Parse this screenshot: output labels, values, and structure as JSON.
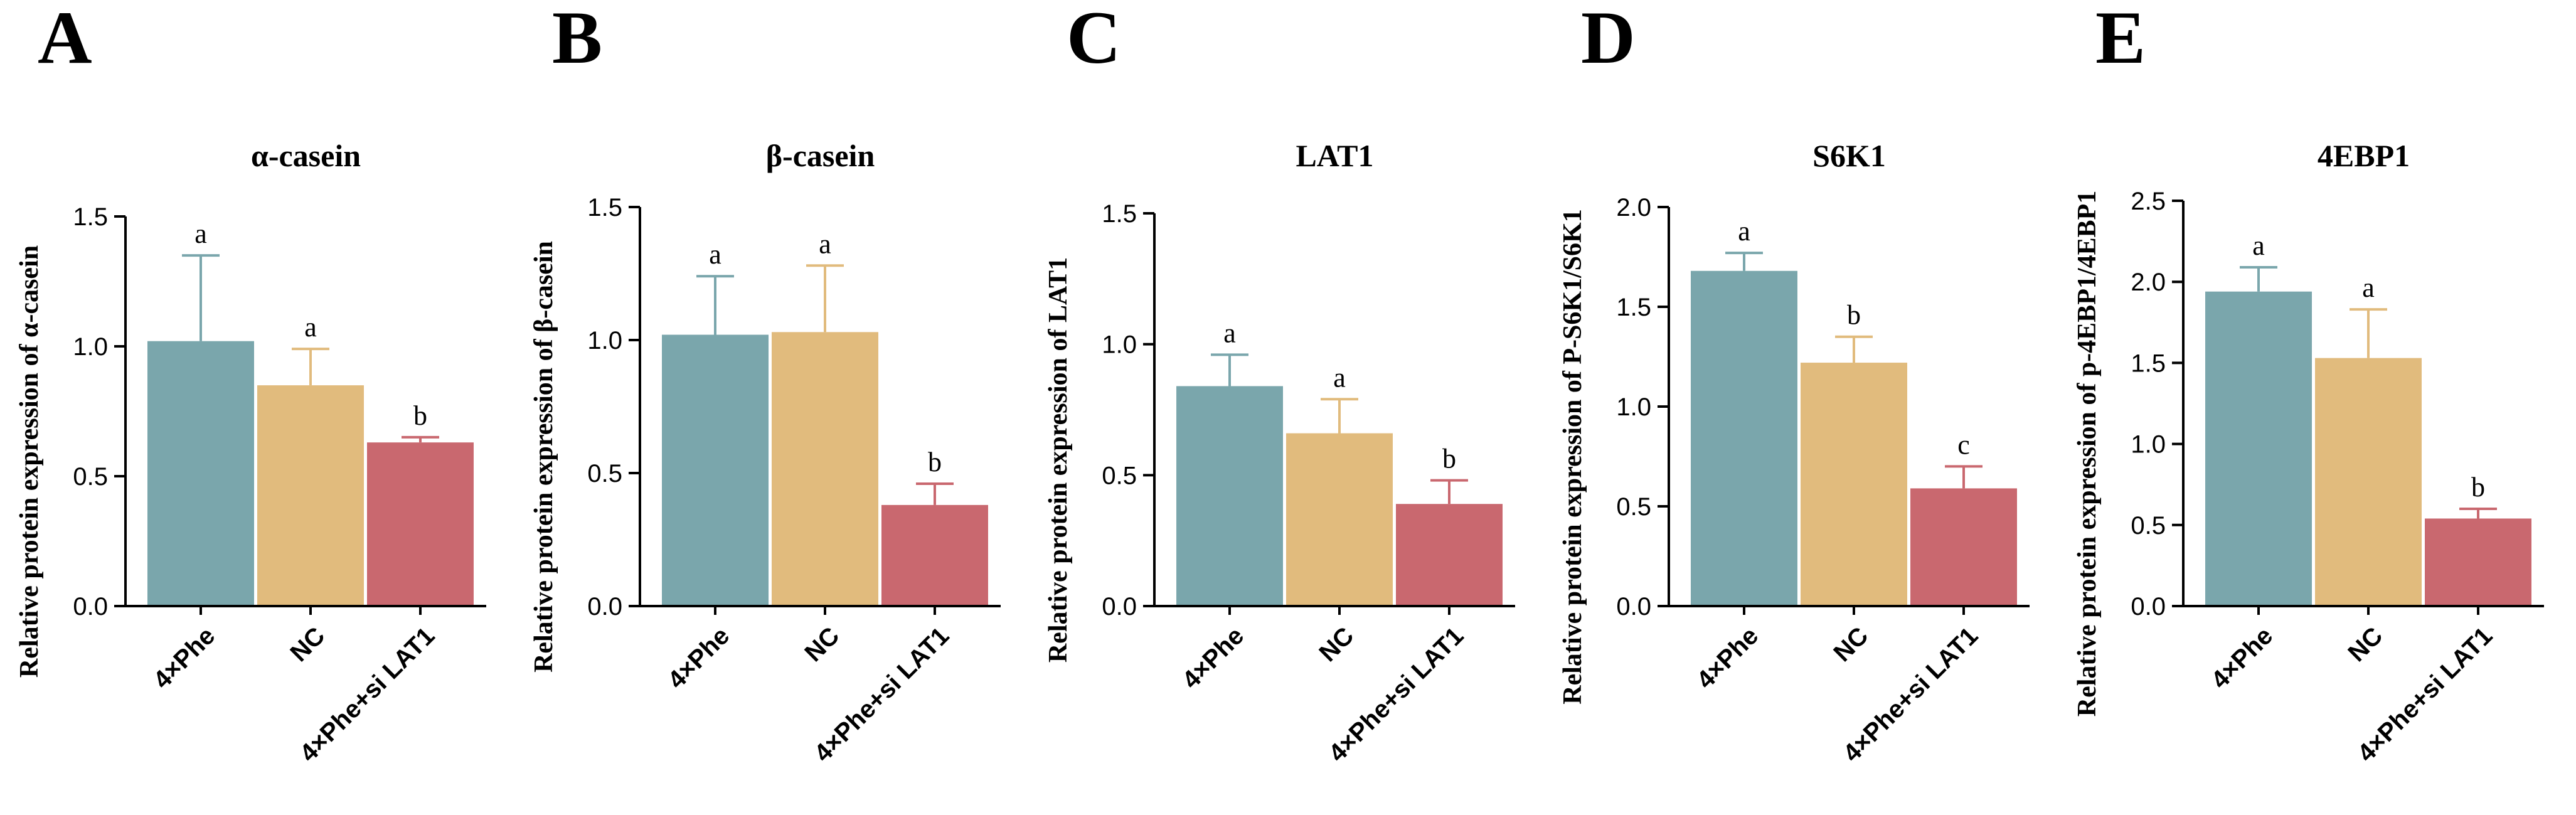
{
  "chart_data": [
    {
      "type": "bar",
      "panel": "A",
      "title": "α-casein",
      "ylabel": "Relative protein expression of α-casein",
      "xlabel": "",
      "categories": [
        "4×Phe",
        "NC",
        "4×Phe+si LAT1"
      ],
      "values": [
        1.02,
        0.85,
        0.63
      ],
      "errors": [
        0.33,
        0.14,
        0.02
      ],
      "significance": [
        "a",
        "a",
        "b"
      ],
      "ylim": [
        0,
        1.5
      ],
      "yticks": [
        0.0,
        0.5,
        1.0,
        1.5
      ],
      "ytick_labels": [
        "0.0",
        "0.5",
        "1.0",
        "1.5"
      ]
    },
    {
      "type": "bar",
      "panel": "B",
      "title": "β-casein",
      "ylabel": "Relative protein expression of β-casein",
      "xlabel": "",
      "categories": [
        "4×Phe",
        "NC",
        "4×Phe+si LAT1"
      ],
      "values": [
        1.02,
        1.03,
        0.38
      ],
      "errors": [
        0.22,
        0.25,
        0.08
      ],
      "significance": [
        "a",
        "a",
        "b"
      ],
      "ylim": [
        0,
        1.5
      ],
      "yticks": [
        0.0,
        0.5,
        1.0,
        1.5
      ],
      "ytick_labels": [
        "0.0",
        "0.5",
        "1.0",
        "1.5"
      ]
    },
    {
      "type": "bar",
      "panel": "C",
      "title": "LAT1",
      "ylabel": "Relative protein expression of LAT1",
      "xlabel": "",
      "categories": [
        "4×Phe",
        "NC",
        "4×Phe+si LAT1"
      ],
      "values": [
        0.84,
        0.66,
        0.39
      ],
      "errors": [
        0.12,
        0.13,
        0.09
      ],
      "significance": [
        "a",
        "a",
        "b"
      ],
      "ylim": [
        0,
        1.5
      ],
      "yticks": [
        0.0,
        0.5,
        1.0,
        1.5
      ],
      "ytick_labels": [
        "0.0",
        "0.5",
        "1.0",
        "1.5"
      ]
    },
    {
      "type": "bar",
      "panel": "D",
      "title": "S6K1",
      "ylabel": "Relative protein expression of P-S6K1/S6K1",
      "xlabel": "",
      "categories": [
        "4×Phe",
        "NC",
        "4×Phe+si LAT1"
      ],
      "values": [
        1.68,
        1.22,
        0.59
      ],
      "errors": [
        0.09,
        0.13,
        0.11
      ],
      "significance": [
        "a",
        "b",
        "c"
      ],
      "ylim": [
        0,
        2.0
      ],
      "yticks": [
        0.0,
        0.5,
        1.0,
        1.5,
        2.0
      ],
      "ytick_labels": [
        "0.0",
        "0.5",
        "1.0",
        "1.5",
        "2.0"
      ]
    },
    {
      "type": "bar",
      "panel": "E",
      "title": "4EBP1",
      "ylabel": "Relative protein expression of p-4EBP1/4EBP1",
      "xlabel": "",
      "categories": [
        "4×Phe",
        "NC",
        "4×Phe+si LAT1"
      ],
      "values": [
        1.94,
        1.53,
        0.54
      ],
      "errors": [
        0.15,
        0.3,
        0.06
      ],
      "significance": [
        "a",
        "a",
        "b"
      ],
      "ylim": [
        0,
        2.5
      ],
      "yticks": [
        0.0,
        0.5,
        1.0,
        1.5,
        2.0,
        2.5
      ],
      "ytick_labels": [
        "0.0",
        "0.5",
        "1.0",
        "1.5",
        "2.0",
        "2.5"
      ]
    }
  ],
  "colors": {
    "bars": [
      "#7aa6ac",
      "#e1bb7d",
      "#c9686f"
    ],
    "errors": [
      "#7aa6ac",
      "#e1bb7d",
      "#c9686f"
    ],
    "axis": "#000000"
  }
}
